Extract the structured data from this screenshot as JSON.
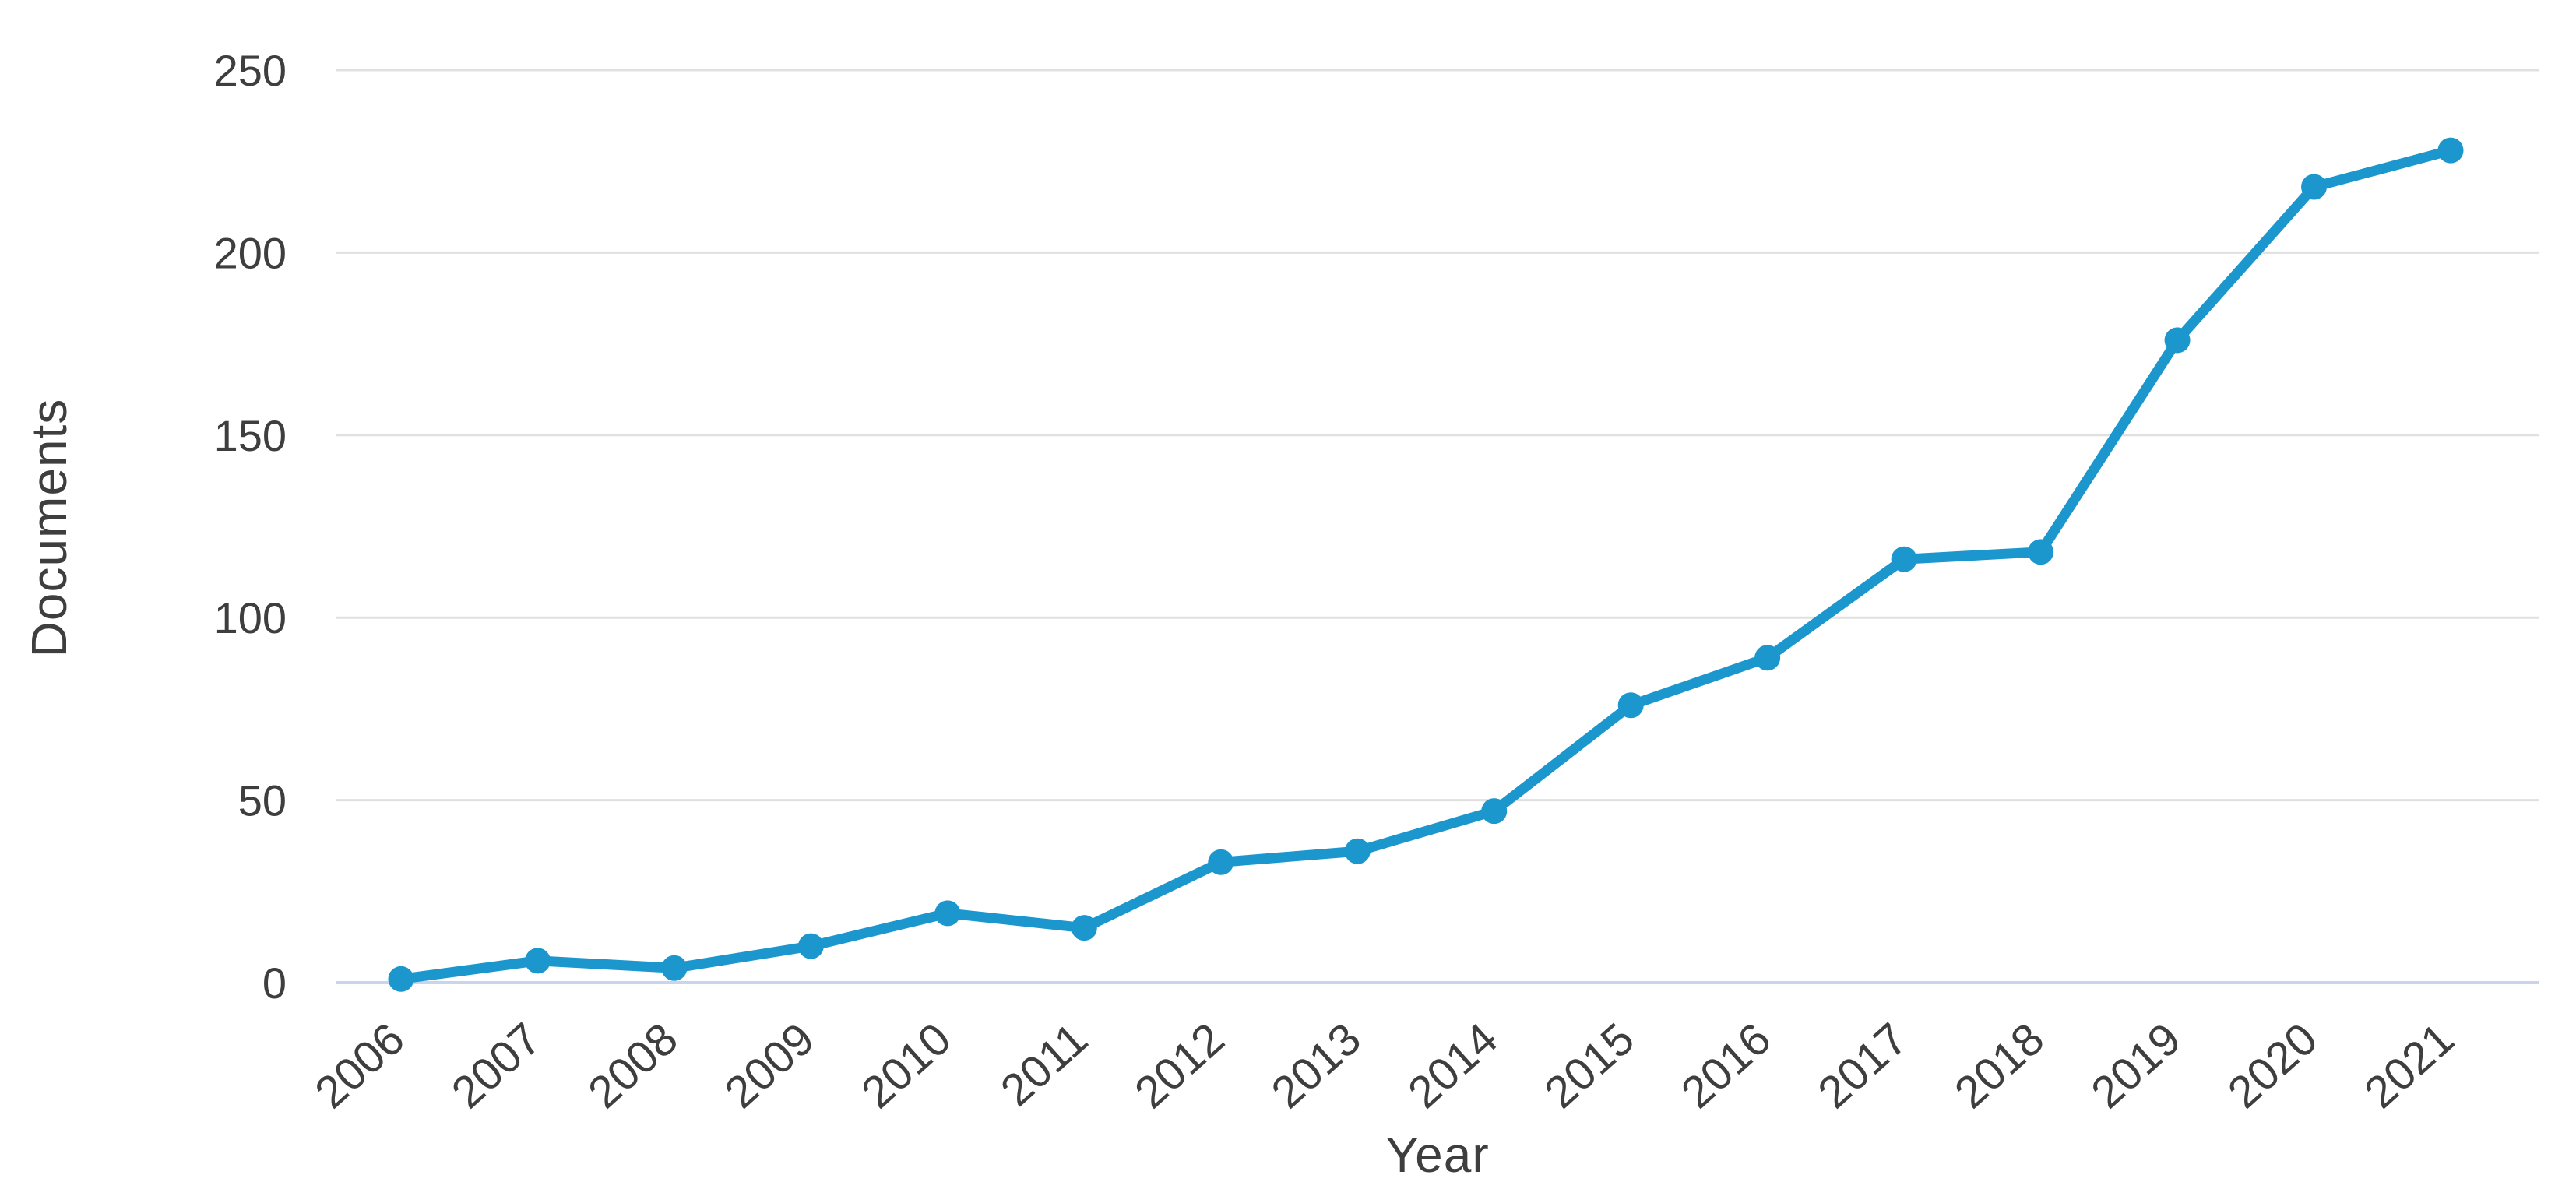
{
  "chart_data": {
    "type": "line",
    "title": "",
    "xlabel": "Year",
    "ylabel": "Documents",
    "categories": [
      "2006",
      "2007",
      "2008",
      "2009",
      "2010",
      "2011",
      "2012",
      "2013",
      "2014",
      "2015",
      "2016",
      "2017",
      "2018",
      "2019",
      "2020",
      "2021"
    ],
    "series": [
      {
        "name": "Documents",
        "values": [
          1,
          6,
          4,
          10,
          19,
          15,
          33,
          36,
          47,
          76,
          89,
          116,
          118,
          176,
          218,
          228
        ]
      }
    ],
    "ylim": [
      0,
      250
    ],
    "yticks": [
      0,
      50,
      100,
      150,
      200,
      250
    ],
    "grid": "horizontal",
    "legend": "none",
    "marker": "circle"
  },
  "colors": {
    "line": "#1b97ce",
    "marker": "#1b97ce",
    "gridline": "#e0e0e0",
    "zero_axis_line": "#c9d4ee",
    "tick_text": "#3e3e3e",
    "axis_title_text": "#3e3e3e",
    "background": "#ffffff"
  }
}
